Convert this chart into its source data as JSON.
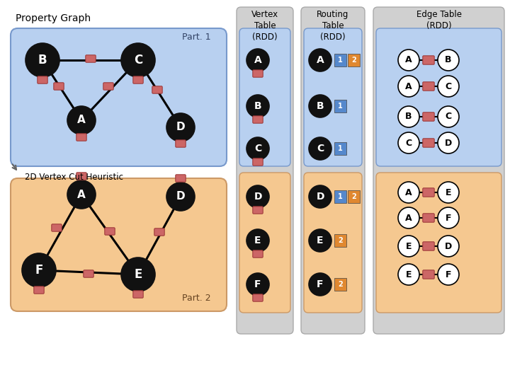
{
  "bg_color": "#ffffff",
  "part1_bg": "#b8d0f0",
  "part2_bg": "#f5c890",
  "outer_box_bg": "#d8d8d8",
  "routing_blue_box": "#5588cc",
  "routing_orange_box": "#e08830",
  "property_graph_label": "Property Graph",
  "part1_label": "Part. 1",
  "part2_label": "Part. 2",
  "heuristic_label": "2D Vertex Cut Heuristic",
  "vtable_title": "Vertex\nTable\n(RDD)",
  "routing_title": "Routing\nTable\n(RDD)",
  "edge_title": "Edge Table\n(RDD)"
}
